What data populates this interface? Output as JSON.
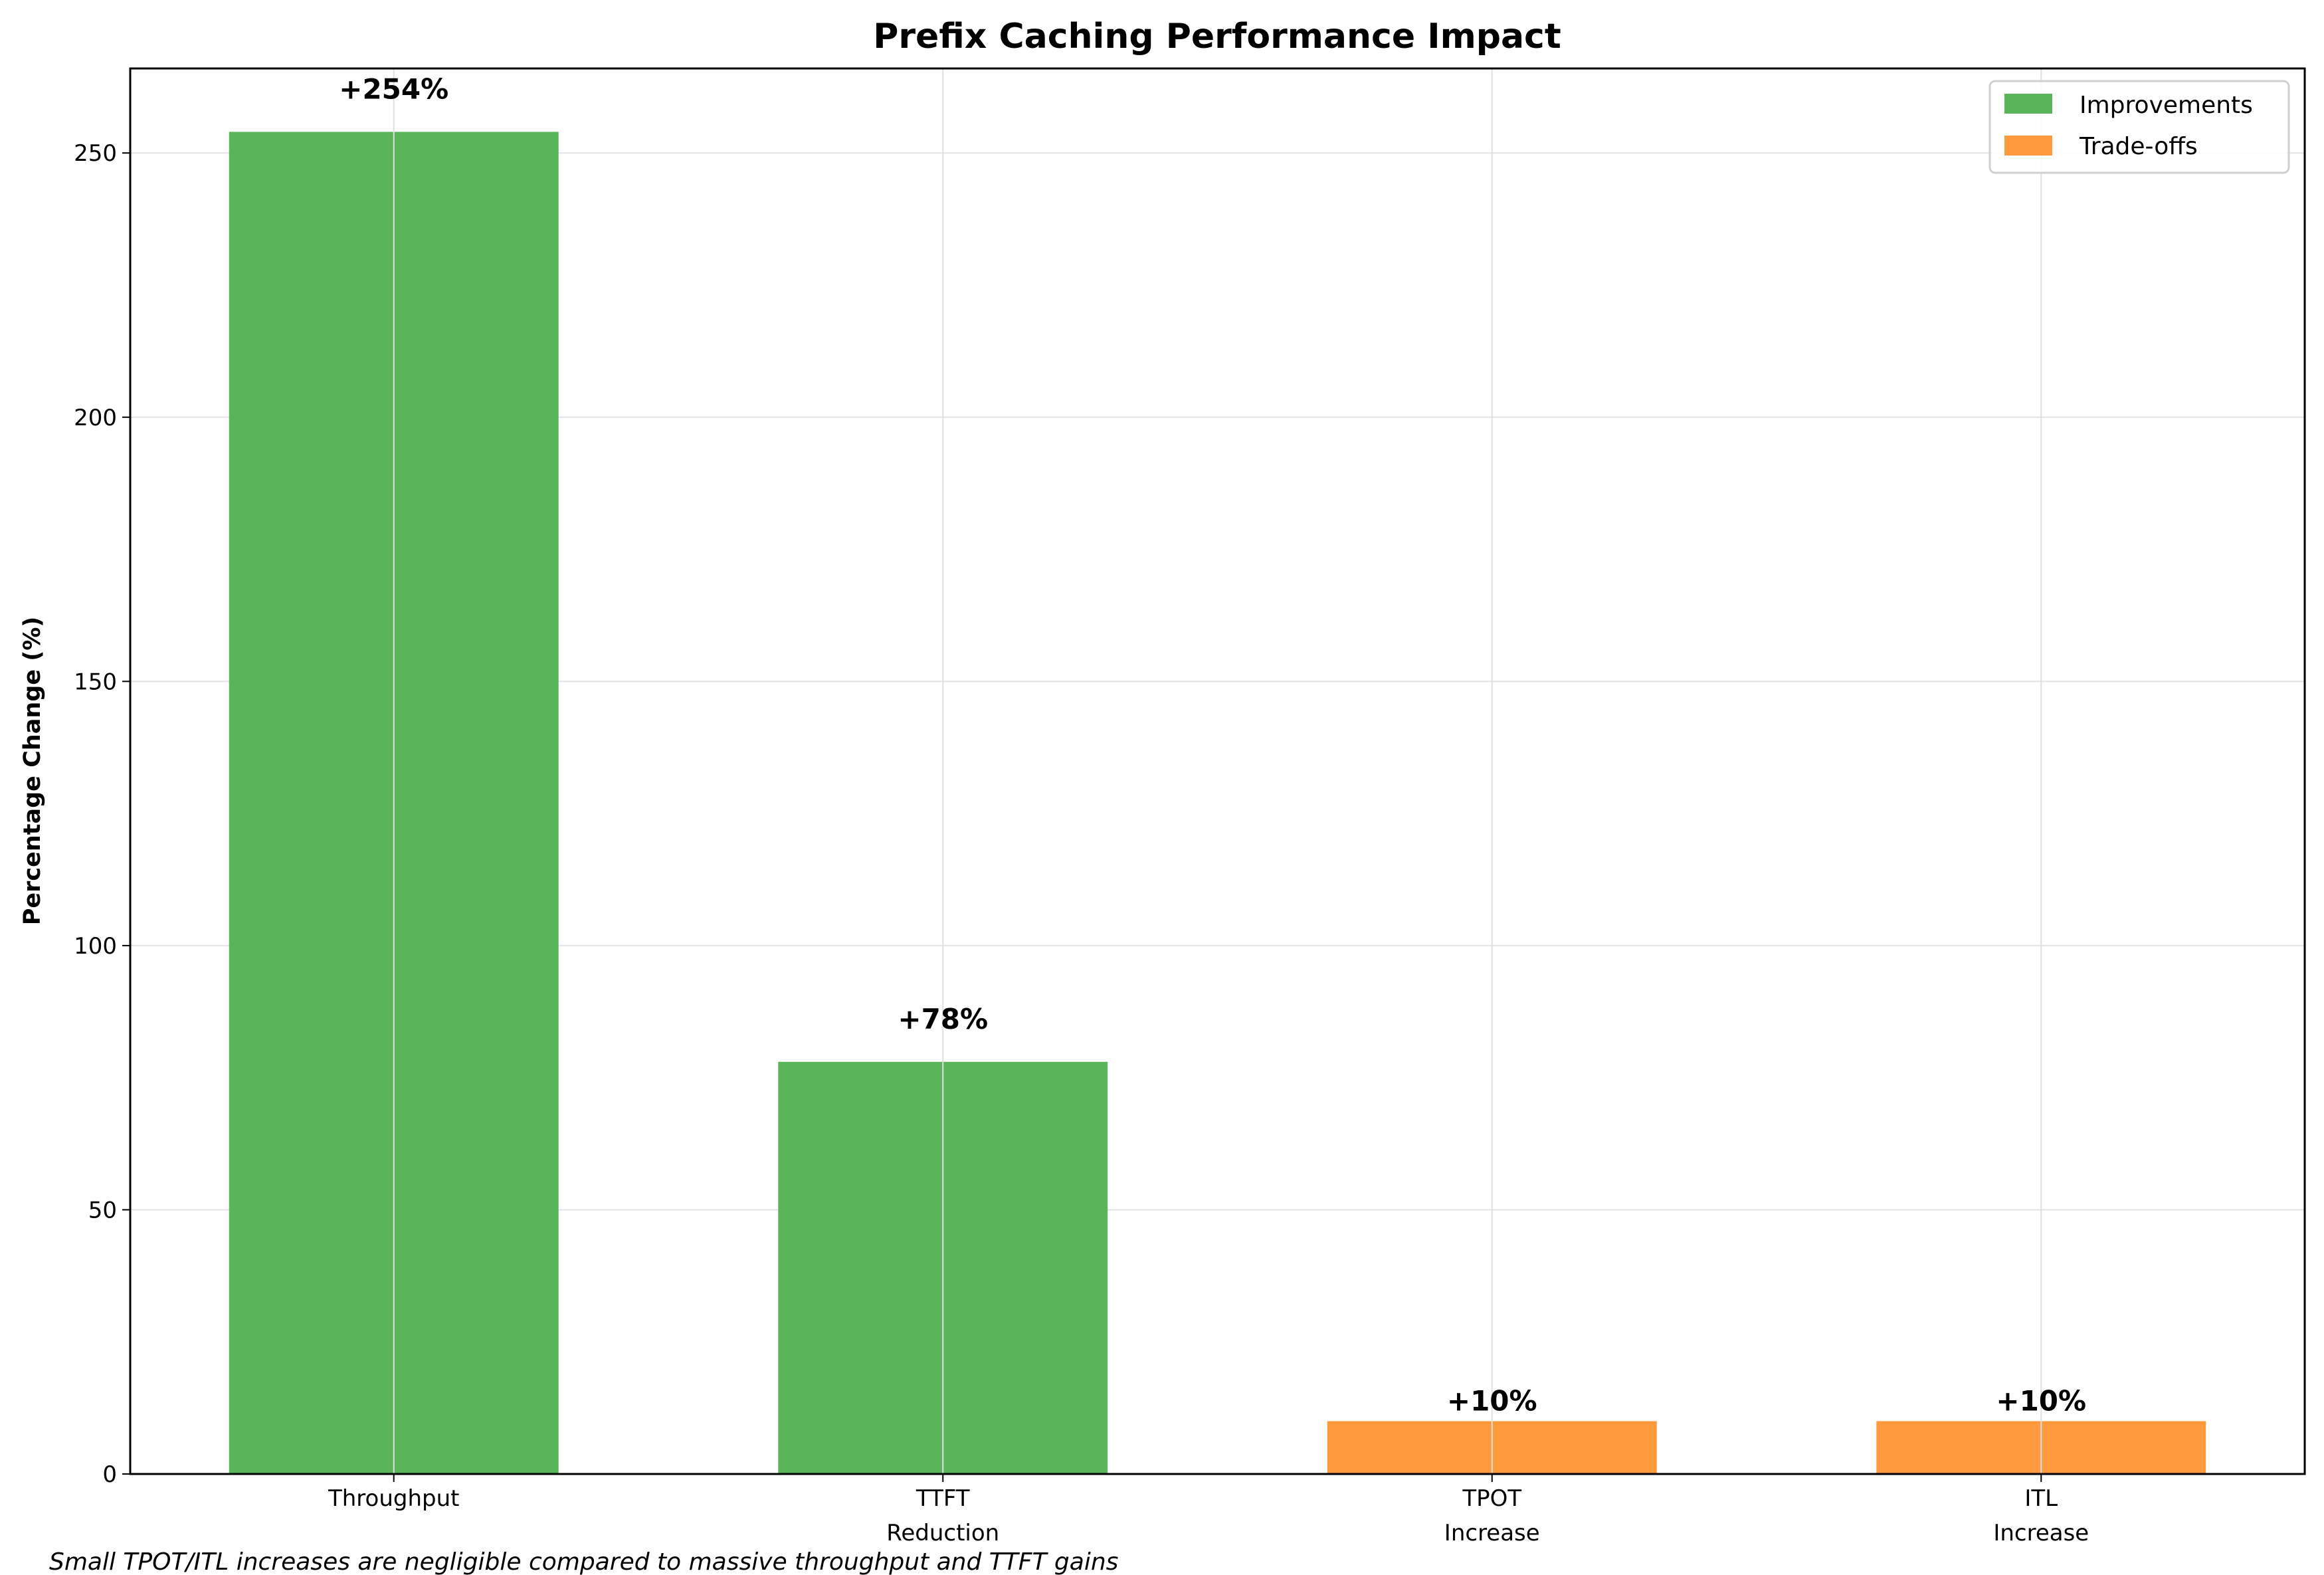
{
  "chart_data": {
    "type": "bar",
    "title": "Prefix Caching Performance Impact",
    "xlabel": "",
    "ylabel": "Percentage Change (%)",
    "categories": [
      "Throughput",
      "TTFT\nReduction",
      "TPOT\nIncrease",
      "ITL\nIncrease"
    ],
    "values": [
      254,
      78,
      10,
      10
    ],
    "data_labels": [
      "+254%",
      "+78%",
      "+10%",
      "+10%"
    ],
    "bar_groups": [
      "Improvements",
      "Improvements",
      "Trade-offs",
      "Trade-offs"
    ],
    "series": [
      {
        "name": "Improvements",
        "color": "#5ab45a"
      },
      {
        "name": "Trade-offs",
        "color": "#ff993e"
      }
    ],
    "ylim": [
      0,
      266
    ],
    "yticks": [
      0,
      50,
      100,
      150,
      200,
      250
    ],
    "grid": true,
    "legend": "top-right",
    "annotation": "Small TPOT/ITL increases are negligible compared to massive throughput and TTFT gains"
  }
}
